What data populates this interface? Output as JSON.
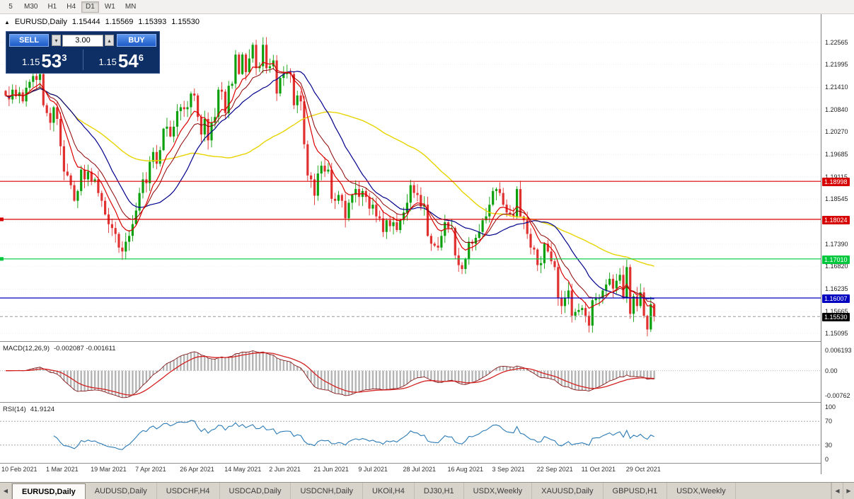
{
  "toolbar": {
    "timeframes": [
      "5",
      "M30",
      "H1",
      "H4",
      "D1",
      "W1",
      "MN"
    ],
    "active_timeframe": "D1"
  },
  "chart_header": {
    "symbol": "EURUSD,Daily",
    "open": "1.15444",
    "high": "1.15569",
    "low": "1.15393",
    "close": "1.15530",
    "collapse_icon": "▲"
  },
  "trade_widget": {
    "sell_label": "SELL",
    "buy_label": "BUY",
    "volume": "3.00",
    "spin_down_icon": "▾",
    "spin_up_icon": "▴",
    "sell_price": {
      "big": "1.15",
      "pips": "53",
      "sup": "3"
    },
    "buy_price": {
      "big": "1.15",
      "pips": "54",
      "sup": "6"
    }
  },
  "chart_data": {
    "type": "candlestick",
    "title": "EURUSD,Daily",
    "up_color": "#0ca00c",
    "down_color": "#e03030",
    "price_range": {
      "min": 1.149,
      "max": 1.2325
    },
    "y_axis_labels": [
      "1.22565",
      "1.21995",
      "1.21410",
      "1.20840",
      "1.20270",
      "1.19685",
      "1.19115",
      "1.18545",
      "1.17960",
      "1.17390",
      "1.16820",
      "1.16235",
      "1.15665",
      "1.15095"
    ],
    "x_labels": [
      "10 Feb 2021",
      "1 Mar 2021",
      "19 Mar 2021",
      "7 Apr 2021",
      "26 Apr 2021",
      "14 May 2021",
      "2 Jun 2021",
      "21 Jun 2021",
      "9 Jul 2021",
      "28 Jul 2021",
      "16 Aug 2021",
      "3 Sep 2021",
      "22 Sep 2021",
      "11 Oct 2021",
      "29 Oct 2021"
    ],
    "label_step": 13,
    "closes": [
      1.212,
      1.211,
      1.2135,
      1.2118,
      1.2128,
      1.2105,
      1.214,
      1.2155,
      1.217,
      1.216,
      1.2175,
      1.2095,
      1.2075,
      1.205,
      1.209,
      1.206,
      1.199,
      1.1925,
      1.1915,
      1.189,
      1.185,
      1.1875,
      1.193,
      1.1905,
      1.1925,
      1.19,
      1.1905,
      1.187,
      1.185,
      1.1815,
      1.179,
      1.178,
      1.1765,
      1.173,
      1.172,
      1.1745,
      1.176,
      1.179,
      1.1825,
      1.187,
      1.1905,
      1.1895,
      1.195,
      1.1975,
      1.1945,
      1.198,
      1.2035,
      1.204,
      1.2015,
      1.204,
      1.208,
      1.209,
      1.2085,
      1.209,
      1.2125,
      1.212,
      1.2065,
      1.202,
      1.206,
      1.2005,
      1.205,
      1.2065,
      1.2135,
      1.213,
      1.2075,
      1.2145,
      1.215,
      1.2225,
      1.2175,
      1.2225,
      1.218,
      1.2215,
      1.225,
      1.219,
      1.2195,
      1.225,
      1.219,
      1.2195,
      1.221,
      1.2125,
      1.2165,
      1.2175,
      1.218,
      1.2175,
      1.2095,
      1.212,
      1.2105,
      1.1995,
      1.1915,
      1.1905,
      1.1863,
      1.192,
      1.194,
      1.1925,
      1.193,
      1.1855,
      1.185,
      1.1865,
      1.185,
      1.1805,
      1.1845,
      1.1865,
      1.188,
      1.186,
      1.1875,
      1.186,
      1.183,
      1.184,
      1.181,
      1.1805,
      1.177,
      1.18,
      1.1785,
      1.1795,
      1.1775,
      1.18,
      1.182,
      1.1845,
      1.189,
      1.187,
      1.1865,
      1.1835,
      1.184,
      1.176,
      1.174,
      1.1735,
      1.173,
      1.176,
      1.1795,
      1.178,
      1.178,
      1.171,
      1.1685,
      1.1675,
      1.17,
      1.1745,
      1.174,
      1.1755,
      1.177,
      1.18,
      1.181,
      1.184,
      1.1875,
      1.188,
      1.187,
      1.184,
      1.182,
      1.1815,
      1.181,
      1.188,
      1.181,
      1.18,
      1.1765,
      1.173,
      1.1725,
      1.1685,
      1.169,
      1.174,
      1.172,
      1.1695,
      1.168,
      1.16,
      1.158,
      1.16,
      1.162,
      1.1555,
      1.1565,
      1.157,
      1.1575,
      1.1555,
      1.153,
      1.1595,
      1.16,
      1.16,
      1.162,
      1.1635,
      1.165,
      1.1625,
      1.1645,
      1.166,
      1.16,
      1.168,
      1.156,
      1.1605,
      1.158,
      1.1615,
      1.1555,
      1.152,
      1.1585,
      1.1553
    ],
    "moving_averages": [
      {
        "period": 8,
        "type": "ema",
        "color": "#dc0000",
        "width": 1.2
      },
      {
        "period": 13,
        "type": "ema",
        "color": "#8b0000",
        "width": 1.0
      },
      {
        "period": 21,
        "type": "sma",
        "color": "#00008b",
        "width": 1.2
      },
      {
        "period": 55,
        "type": "sma",
        "color": "#e8d400",
        "width": 1.4
      }
    ],
    "hlines": [
      {
        "value": 1.18998,
        "label": "1.18998",
        "color": "#d60000",
        "badge": "#d60000"
      },
      {
        "value": 1.18024,
        "label": "1.18024",
        "color": "#d60000",
        "badge": "#d60000",
        "edge_mark": true
      },
      {
        "value": 1.1701,
        "label": "1.17010",
        "color": "#00c83c",
        "badge": "#00c83c",
        "edge_mark": true
      },
      {
        "value": 1.16007,
        "label": "1.16007",
        "color": "#0000c0",
        "badge": "#0000c0"
      },
      {
        "value": 1.1553,
        "label": "1.15530",
        "color": "#9a9a9a",
        "badge": "#000000",
        "dashed": true
      }
    ],
    "macd": {
      "name": "MACD(12,26,9)",
      "values": "-0.002087 -0.001611",
      "fast": 12,
      "slow": 26,
      "signal": 9,
      "axis_labels": [
        "0.006193",
        "0.00",
        "-0.00762"
      ],
      "range": {
        "min": -0.0095,
        "max": 0.0085
      },
      "hist_color": "#b4b4b4",
      "signal_color": "#d42020",
      "main_color": "#7a0000"
    },
    "rsi": {
      "name": "RSI(14)",
      "value": "41.9124",
      "period": 14,
      "axis_labels": [
        "100",
        "70",
        "30",
        "0"
      ],
      "levels": [
        70,
        30
      ],
      "color": "#2a7ab5"
    }
  },
  "bottom_tabs": {
    "scroll_left": "◀",
    "scroll_right": "▶",
    "tabs": [
      {
        "label": "EURUSD,Daily",
        "active": true
      },
      {
        "label": "AUDUSD,Daily",
        "active": false
      },
      {
        "label": "USDCHF,H4",
        "active": false
      },
      {
        "label": "USDCAD,Daily",
        "active": false
      },
      {
        "label": "USDCNH,Daily",
        "active": false
      },
      {
        "label": "UKOil,H4",
        "active": false
      },
      {
        "label": "DJ30,H1",
        "active": false
      },
      {
        "label": "USDX,Weekly",
        "active": false
      },
      {
        "label": "XAUUSD,Daily",
        "active": false
      },
      {
        "label": "GBPUSD,H1",
        "active": false
      },
      {
        "label": "USDX,Weekly",
        "active": false
      }
    ]
  }
}
